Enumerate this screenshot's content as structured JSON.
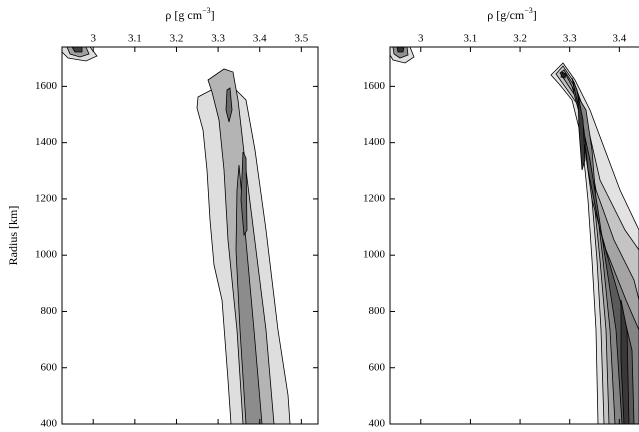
{
  "chart_data": [
    {
      "type": "contour",
      "xlabel": {
        "text": "ρ [g cm",
        "sup": "−3",
        "close": "]"
      },
      "ylabel": "Radius [km]",
      "xlim": [
        2.925,
        3.54
      ],
      "ylim": [
        400,
        1740
      ],
      "xticks": [
        3,
        3.1,
        3.2,
        3.3,
        3.4,
        3.5
      ],
      "yticks": [
        400,
        600,
        800,
        1000,
        1200,
        1400,
        1600
      ]
    },
    {
      "type": "contour",
      "xlabel": {
        "text": "ρ [g/cm",
        "sup": "−3",
        "close": "]"
      },
      "xlim": [
        2.938,
        3.5
      ],
      "ylim": [
        400,
        1740
      ],
      "xticks": [
        3,
        3.1,
        3.2,
        3.3,
        3.4
      ],
      "yticks": [
        400,
        600,
        800,
        1000,
        1200,
        1400,
        1600
      ]
    }
  ]
}
